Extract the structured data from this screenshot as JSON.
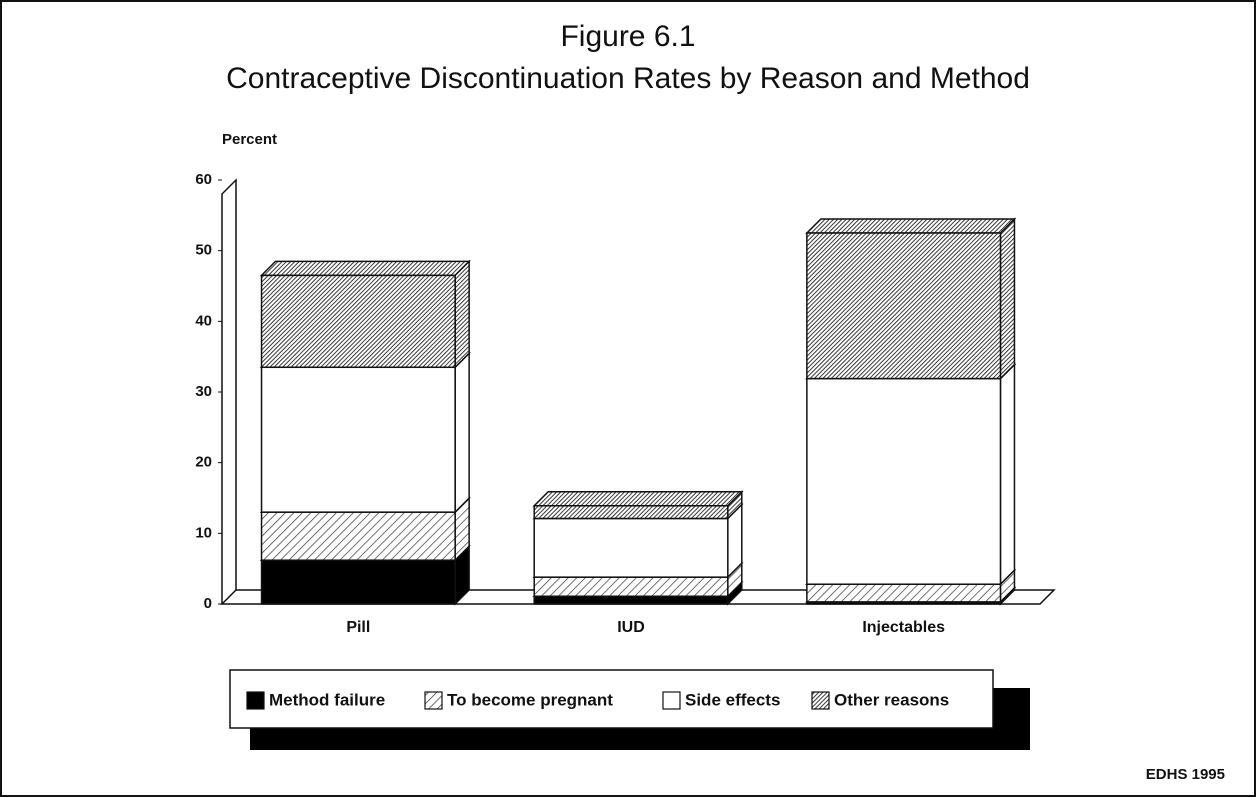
{
  "chart_data": {
    "type": "stacked_bar_3d",
    "title": "Figure 6.1",
    "subtitle": "Contraceptive Discontinuation Rates by Reason and Method",
    "ylabel": "Percent",
    "categories": [
      "Pill",
      "IUD",
      "Injectables"
    ],
    "series": [
      {
        "name": "Method failure",
        "color": "#000000",
        "fill_style": "solid",
        "values": [
          6.2,
          1.1,
          0.3
        ]
      },
      {
        "name": "To become pregnant",
        "color": "#333333",
        "fill_style": "hatch",
        "values": [
          6.8,
          2.7,
          2.5
        ]
      },
      {
        "name": "Side effects",
        "color": "#ffffff",
        "fill_style": "solid",
        "values": [
          20.5,
          8.3,
          29.1
        ]
      },
      {
        "name": "Other reasons",
        "color": "#222222",
        "fill_style": "dense-hatch",
        "values": [
          13.0,
          1.8,
          20.6
        ]
      }
    ],
    "ylim": [
      0,
      60
    ],
    "yticks": [
      0,
      10,
      20,
      30,
      40,
      50,
      60
    ],
    "legend": "bottom",
    "source": "EDHS 1995"
  }
}
